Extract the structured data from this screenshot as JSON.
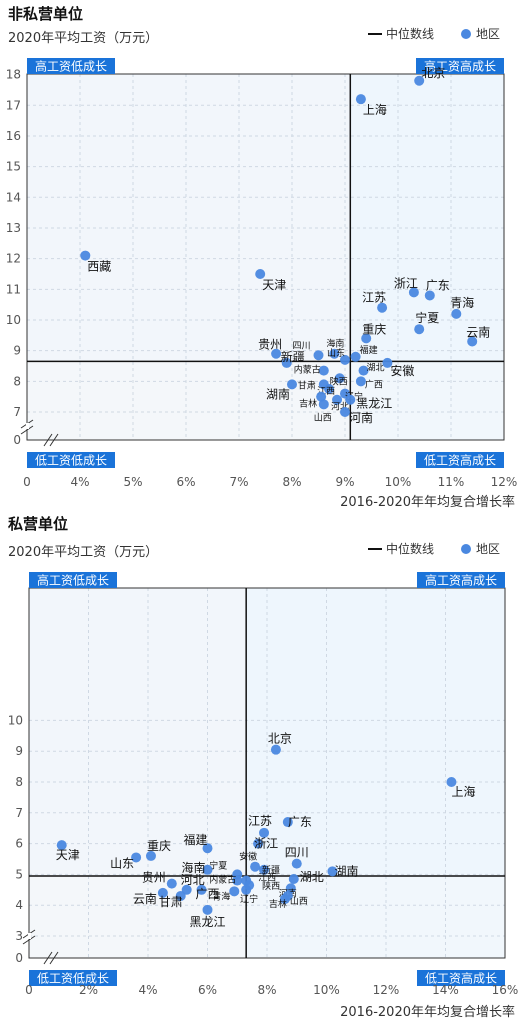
{
  "charts": [
    {
      "section_title": "非私营单位",
      "ylabel": "2020年平均工资（万元）",
      "xlabel": "2016-2020年年均复合增长率",
      "legend_median": "中位数线",
      "legend_region": "地区",
      "quadrants": [
        "高工资低成长",
        "高工资高成长",
        "低工资低成长",
        "低工资高成长"
      ],
      "x_ticks": [
        "0",
        "4%",
        "5%",
        "6%",
        "7%",
        "8%",
        "9%",
        "10%",
        "11%",
        "12%"
      ],
      "y_ticks": [
        "0",
        "7",
        "8",
        "9",
        "10",
        "11",
        "12",
        "13",
        "14",
        "15",
        "16",
        "17",
        "18"
      ]
    },
    {
      "section_title": "私营单位",
      "ylabel": "2020年平均工资（万元）",
      "xlabel": "2016-2020年年均复合增长率",
      "legend_median": "中位数线",
      "legend_region": "地区",
      "quadrants": [
        "高工资低成长",
        "高工资高成长",
        "低工资低成长",
        "低工资高成长"
      ],
      "x_ticks": [
        "0",
        "2%",
        "4%",
        "6%",
        "8%",
        "10%",
        "12%",
        "14%",
        "16%"
      ],
      "y_ticks": [
        "0",
        "3",
        "4",
        "5",
        "6",
        "7",
        "8",
        "9",
        "10"
      ]
    }
  ],
  "chart_data": [
    {
      "type": "scatter",
      "title": "非私营单位",
      "xlabel": "2016-2020年年均复合增长率",
      "ylabel": "2020年平均工资（万元）",
      "x_unit": "%",
      "xlim": [
        3.0,
        12.0
      ],
      "ylim": [
        6.5,
        18.0
      ],
      "axis_break": true,
      "median": {
        "x": 9.1,
        "y": 8.65
      },
      "color": "#3b7ddd",
      "points": [
        {
          "name": "北京",
          "x": 10.4,
          "y": 17.8
        },
        {
          "name": "上海",
          "x": 9.3,
          "y": 17.2
        },
        {
          "name": "西藏",
          "x": 4.1,
          "y": 12.1
        },
        {
          "name": "天津",
          "x": 7.4,
          "y": 11.5
        },
        {
          "name": "浙江",
          "x": 10.3,
          "y": 10.9
        },
        {
          "name": "广东",
          "x": 10.6,
          "y": 10.8
        },
        {
          "name": "江苏",
          "x": 9.7,
          "y": 10.4
        },
        {
          "name": "青海",
          "x": 11.1,
          "y": 10.2
        },
        {
          "name": "宁夏",
          "x": 10.4,
          "y": 9.7
        },
        {
          "name": "云南",
          "x": 11.4,
          "y": 9.3
        },
        {
          "name": "重庆",
          "x": 9.4,
          "y": 9.4
        },
        {
          "name": "贵州",
          "x": 7.7,
          "y": 8.9
        },
        {
          "name": "新疆",
          "x": 7.9,
          "y": 8.6
        },
        {
          "name": "四川",
          "x": 8.5,
          "y": 8.85
        },
        {
          "name": "海南",
          "x": 8.8,
          "y": 8.9
        },
        {
          "name": "山东",
          "x": 9.0,
          "y": 8.7
        },
        {
          "name": "福建",
          "x": 9.2,
          "y": 8.8
        },
        {
          "name": "内蒙古",
          "x": 8.6,
          "y": 8.35
        },
        {
          "name": "湖北",
          "x": 9.35,
          "y": 8.35
        },
        {
          "name": "安徽",
          "x": 9.8,
          "y": 8.6
        },
        {
          "name": "陕西",
          "x": 8.9,
          "y": 8.1
        },
        {
          "name": "广西",
          "x": 9.3,
          "y": 8.0
        },
        {
          "name": "甘肃",
          "x": 8.6,
          "y": 7.9
        },
        {
          "name": "江西",
          "x": 8.7,
          "y": 7.75
        },
        {
          "name": "辽宁",
          "x": 9.0,
          "y": 7.6
        },
        {
          "name": "湖南",
          "x": 8.0,
          "y": 7.9
        },
        {
          "name": "吉林",
          "x": 8.55,
          "y": 7.5
        },
        {
          "name": "河北",
          "x": 8.85,
          "y": 7.4
        },
        {
          "name": "黑龙江",
          "x": 9.1,
          "y": 7.4
        },
        {
          "name": "山西",
          "x": 8.6,
          "y": 7.25
        },
        {
          "name": "河南",
          "x": 9.0,
          "y": 7.0
        }
      ]
    },
    {
      "type": "scatter",
      "title": "私营单位",
      "xlabel": "2016-2020年年均复合增长率",
      "ylabel": "2020年平均工资（万元）",
      "x_unit": "%",
      "xlim": [
        0,
        16
      ],
      "ylim": [
        2.5,
        10
      ],
      "axis_break": true,
      "median": {
        "x": 7.3,
        "y": 4.95
      },
      "color": "#3b7ddd",
      "points": [
        {
          "name": "北京",
          "x": 8.3,
          "y": 9.05
        },
        {
          "name": "上海",
          "x": 14.2,
          "y": 8.0
        },
        {
          "name": "天津",
          "x": 1.1,
          "y": 5.95
        },
        {
          "name": "山东",
          "x": 3.6,
          "y": 5.55
        },
        {
          "name": "重庆",
          "x": 4.1,
          "y": 5.6
        },
        {
          "name": "福建",
          "x": 6.0,
          "y": 5.85
        },
        {
          "name": "江苏",
          "x": 7.9,
          "y": 6.35
        },
        {
          "name": "广东",
          "x": 8.7,
          "y": 6.7
        },
        {
          "name": "浙江",
          "x": 7.7,
          "y": 6.0
        },
        {
          "name": "海南",
          "x": 6.0,
          "y": 5.15
        },
        {
          "name": "安徽",
          "x": 7.6,
          "y": 5.25
        },
        {
          "name": "四川",
          "x": 9.0,
          "y": 5.35
        },
        {
          "name": "新疆",
          "x": 7.9,
          "y": 5.15
        },
        {
          "name": "湖南",
          "x": 10.2,
          "y": 5.1
        },
        {
          "name": "宁夏",
          "x": 7.0,
          "y": 5.0
        },
        {
          "name": "贵州",
          "x": 4.8,
          "y": 4.7
        },
        {
          "name": "河北",
          "x": 5.3,
          "y": 4.5
        },
        {
          "name": "云南",
          "x": 4.5,
          "y": 4.4
        },
        {
          "name": "广西",
          "x": 5.8,
          "y": 4.5
        },
        {
          "name": "甘肃",
          "x": 5.1,
          "y": 4.3
        },
        {
          "name": "内蒙古",
          "x": 7.0,
          "y": 4.8
        },
        {
          "name": "江西",
          "x": 7.3,
          "y": 4.8
        },
        {
          "name": "陕西",
          "x": 7.4,
          "y": 4.65
        },
        {
          "name": "青海",
          "x": 6.9,
          "y": 4.45
        },
        {
          "name": "辽宁",
          "x": 7.3,
          "y": 4.5
        },
        {
          "name": "湖北",
          "x": 8.9,
          "y": 4.85
        },
        {
          "name": "河南",
          "x": 8.8,
          "y": 4.55
        },
        {
          "name": "山西",
          "x": 8.7,
          "y": 4.3
        },
        {
          "name": "吉林",
          "x": 8.6,
          "y": 4.2
        },
        {
          "name": "黑龙江",
          "x": 6.0,
          "y": 3.85
        }
      ]
    }
  ]
}
